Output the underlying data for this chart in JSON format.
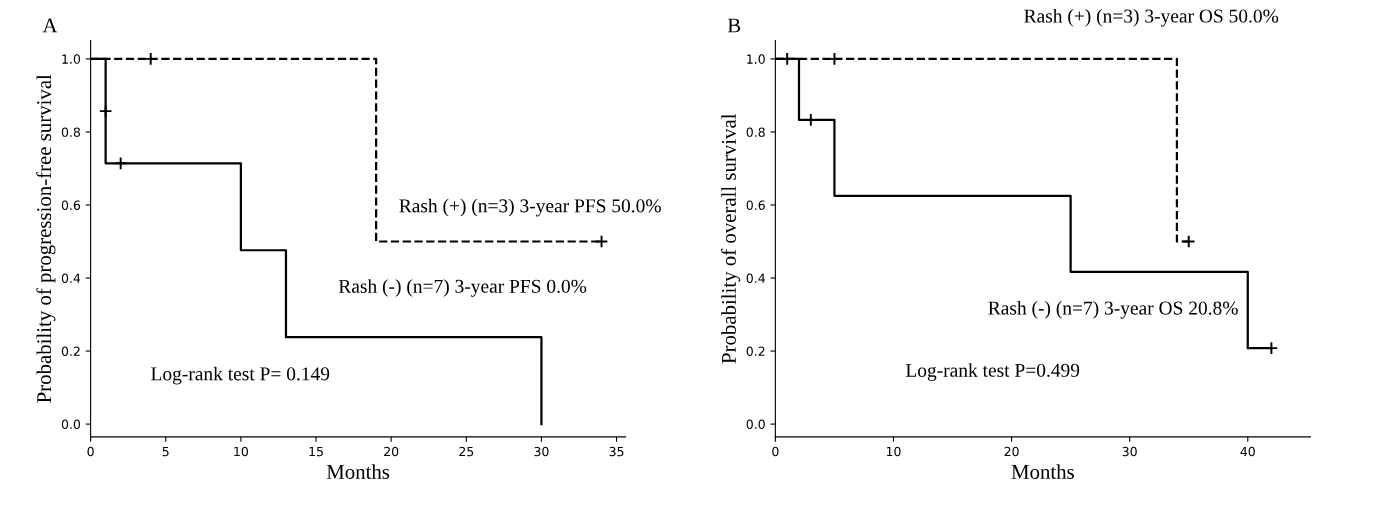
{
  "chart_data": [
    {
      "type": "step",
      "title": "A",
      "xlabel": "Months",
      "ylabel": "Probability of progression-free survival",
      "xlim": [
        0,
        35.6
      ],
      "xticks": [
        0,
        5,
        10,
        15,
        20,
        25,
        30,
        35
      ],
      "ylim": [
        -0.035,
        1.05
      ],
      "yticks": [
        {
          "value": 0,
          "label": "0.0"
        },
        {
          "value": 0.2,
          "label": "0.2"
        },
        {
          "value": 0.4,
          "label": "0.4"
        },
        {
          "value": 0.6,
          "label": "0.6"
        },
        {
          "value": 0.8,
          "label": "0.8"
        },
        {
          "value": 1,
          "label": "1.0"
        }
      ],
      "grid": false,
      "legend": false,
      "series": [
        {
          "color": "#000000",
          "line_style": "dashed",
          "x": [
            0,
            19,
            34
          ],
          "values": [
            1.0,
            0.5,
            0.5
          ]
        },
        {
          "color": "#000000",
          "line_style": "solid",
          "x": [
            0,
            1,
            10,
            13,
            30,
            30
          ],
          "values": [
            1.0,
            0.714,
            0.476,
            0.238,
            0.238,
            0.0
          ]
        },
        {
          "type": "scatter",
          "color": "#000000",
          "marker": "cross",
          "x": [
            4,
            34,
            1,
            2
          ],
          "values": [
            1.0,
            0.5,
            0.857,
            0.714
          ]
        }
      ],
      "annotations": [
        "Rash (+) (n=3) 3-year PFS 50.0%",
        "Rash (-) (n=7) 3-year PFS 0.0%",
        "Log-rank test P= 0.149"
      ]
    },
    {
      "type": "step",
      "title": "B",
      "xlabel": "Months",
      "ylabel": "Probability of overall survival",
      "xlim": [
        0,
        45.3
      ],
      "xticks": [
        0,
        10,
        20,
        30,
        40
      ],
      "ylim": [
        -0.035,
        1.05
      ],
      "yticks": [
        {
          "value": 0,
          "label": "0.0"
        },
        {
          "value": 0.2,
          "label": "0.2"
        },
        {
          "value": 0.4,
          "label": "0.4"
        },
        {
          "value": 0.6,
          "label": "0.6"
        },
        {
          "value": 0.8,
          "label": "0.8"
        },
        {
          "value": 1,
          "label": "1.0"
        }
      ],
      "grid": false,
      "legend": false,
      "series": [
        {
          "color": "#000000",
          "line_style": "dashed",
          "x": [
            0,
            34,
            35
          ],
          "values": [
            1.0,
            0.5,
            0.5
          ]
        },
        {
          "color": "#000000",
          "line_style": "solid",
          "x": [
            0,
            2,
            5,
            25,
            40,
            42
          ],
          "values": [
            1.0,
            0.833,
            0.625,
            0.417,
            0.208,
            0.208
          ]
        },
        {
          "type": "scatter",
          "color": "#000000",
          "marker": "cross",
          "x": [
            1,
            5,
            35,
            3,
            42
          ],
          "values": [
            1.0,
            1.0,
            0.5,
            0.833,
            0.208
          ]
        }
      ],
      "annotations": [
        "Rash (+) (n=3) 3-year OS 50.0%",
        "Rash (-) (n=7) 3-year OS 20.8%",
        "Log-rank test P=0.499"
      ]
    }
  ]
}
